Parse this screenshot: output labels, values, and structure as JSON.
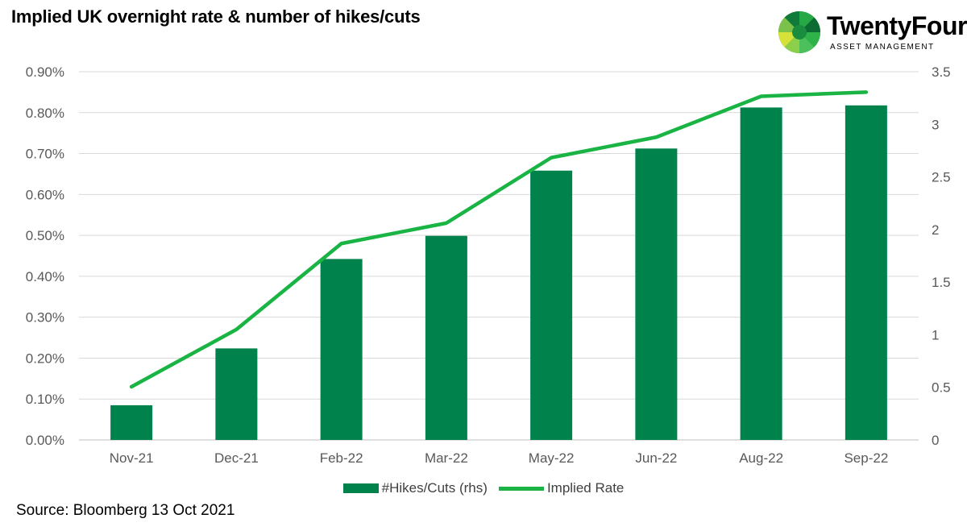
{
  "title": "Implied UK overnight rate & number of hikes/cuts",
  "logo": {
    "name": "TwentyFour",
    "subtitle": "ASSET MANAGEMENT"
  },
  "source": "Source: Bloomberg 13 Oct 2021",
  "colors": {
    "bar": "#00824c",
    "line": "#19b444",
    "grid": "#d9d9d9"
  },
  "chart_data": {
    "type": "bar",
    "categories": [
      "Nov-21",
      "Dec-21",
      "Feb-22",
      "Mar-22",
      "May-22",
      "Jun-22",
      "Aug-22",
      "Sep-22"
    ],
    "series": [
      {
        "name": "#Hikes/Cuts (rhs)",
        "type": "bar",
        "axis": "right",
        "values": [
          0.33,
          0.87,
          1.72,
          1.94,
          2.56,
          2.77,
          3.16,
          3.18
        ]
      },
      {
        "name": "Implied Rate",
        "type": "line",
        "axis": "left",
        "values": [
          0.0013,
          0.0027,
          0.0048,
          0.0053,
          0.0069,
          0.0074,
          0.0084,
          0.0085
        ]
      }
    ],
    "y_left": {
      "min": 0,
      "max": 0.009,
      "ticks": [
        "0.00%",
        "0.10%",
        "0.20%",
        "0.30%",
        "0.40%",
        "0.50%",
        "0.60%",
        "0.70%",
        "0.80%",
        "0.90%"
      ]
    },
    "y_right": {
      "min": 0,
      "max": 3.5,
      "ticks": [
        "0",
        "0.5",
        "1",
        "1.5",
        "2",
        "2.5",
        "3",
        "3.5"
      ]
    },
    "grid": true,
    "legend_position": "bottom"
  }
}
